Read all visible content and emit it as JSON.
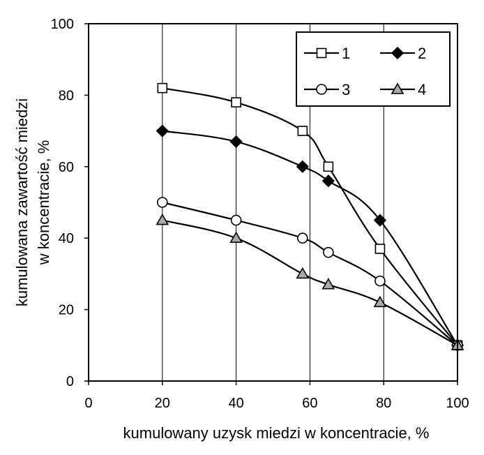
{
  "chart_data": {
    "type": "line",
    "title": "",
    "xlabel": "kumulowany uzysk miedzi w koncentracie, %",
    "ylabel_line1": "kumulowana zawartość miedzi",
    "ylabel_line2": "w koncentracie, %",
    "xlim": [
      0,
      100
    ],
    "ylim": [
      0,
      100
    ],
    "x_ticks": [
      "0",
      "20",
      "40",
      "60",
      "80",
      "100"
    ],
    "y_ticks": [
      "0",
      "20",
      "40",
      "60",
      "80",
      "100"
    ],
    "grid": "vertical",
    "legend_position": "top-right",
    "series": [
      {
        "name": "1",
        "marker": "square",
        "fill": "#ffffff",
        "points": [
          [
            20,
            82
          ],
          [
            40,
            78
          ],
          [
            58,
            70
          ],
          [
            65,
            60
          ],
          [
            79,
            37
          ],
          [
            100,
            10
          ]
        ]
      },
      {
        "name": "2",
        "marker": "diamond",
        "fill": "#000000",
        "points": [
          [
            20,
            70
          ],
          [
            40,
            67
          ],
          [
            58,
            60
          ],
          [
            65,
            56
          ],
          [
            79,
            45
          ],
          [
            100,
            10
          ]
        ]
      },
      {
        "name": "3",
        "marker": "circle",
        "fill": "#ffffff",
        "points": [
          [
            20,
            50
          ],
          [
            40,
            45
          ],
          [
            58,
            40
          ],
          [
            65,
            36
          ],
          [
            79,
            28
          ],
          [
            100,
            10
          ]
        ]
      },
      {
        "name": "4",
        "marker": "triangle",
        "fill": "#aaaaaa",
        "points": [
          [
            20,
            45
          ],
          [
            40,
            40
          ],
          [
            58,
            30
          ],
          [
            65,
            27
          ],
          [
            79,
            22
          ],
          [
            100,
            10
          ]
        ]
      }
    ]
  }
}
